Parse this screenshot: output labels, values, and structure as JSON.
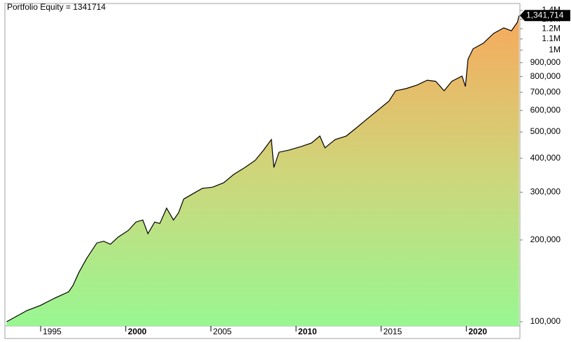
{
  "chart_data": {
    "type": "line",
    "title": "Portfolio Equity = 1341714",
    "log_scale": true,
    "xlim": [
      1992.9,
      2023.15
    ],
    "xticks": [
      1995,
      2000,
      2005,
      2010,
      2015,
      2020
    ],
    "ylim": [
      96500,
      1486000
    ],
    "yticks": [
      {
        "value": 100000,
        "label": "100,000"
      },
      {
        "value": 200000,
        "label": "200,000"
      },
      {
        "value": 300000,
        "label": "300,000"
      },
      {
        "value": 400000,
        "label": "400,000"
      },
      {
        "value": 500000,
        "label": "500,000"
      },
      {
        "value": 600000,
        "label": "600,000"
      },
      {
        "value": 700000,
        "label": "700,000"
      },
      {
        "value": 800000,
        "label": "800,000"
      },
      {
        "value": 900000,
        "label": "900,000"
      },
      {
        "value": 1000000,
        "label": "1M"
      },
      {
        "value": 1100000,
        "label": "1.1M"
      },
      {
        "value": 1200000,
        "label": "1.2M"
      },
      {
        "value": 1300000,
        "label": "1.3M"
      },
      {
        "value": 1400000,
        "label": "1.4M"
      }
    ],
    "series": [
      {
        "color": "#000000",
        "x": [
          1993.0,
          1994.2,
          1995.0,
          1995.8,
          1996.65,
          1996.9,
          1997.25,
          1997.7,
          1998.3,
          1998.7,
          1999.1,
          1999.55,
          2000.15,
          2000.6,
          2001.0,
          2001.3,
          2001.7,
          2002.0,
          2002.4,
          2002.8,
          2003.1,
          2003.4,
          2003.9,
          2004.5,
          2005.1,
          2005.75,
          2006.35,
          2007.0,
          2007.6,
          2008.1,
          2008.55,
          2008.7,
          2009.0,
          2009.6,
          2010.3,
          2010.9,
          2011.4,
          2011.7,
          2012.3,
          2012.95,
          2013.55,
          2014.2,
          2014.8,
          2015.45,
          2015.85,
          2016.45,
          2017.1,
          2017.7,
          2018.2,
          2018.7,
          2019.15,
          2019.75,
          2019.95,
          2020.1,
          2020.4,
          2021.0,
          2021.6,
          2022.2,
          2022.65,
          2023.0,
          2023.1
        ],
        "values": [
          100000,
          110000,
          115000,
          122000,
          129000,
          136000,
          152000,
          171000,
          195000,
          198000,
          193000,
          205000,
          217000,
          233000,
          237000,
          211000,
          233000,
          230000,
          262000,
          237000,
          252000,
          283000,
          295000,
          310000,
          313000,
          325000,
          349000,
          370000,
          393000,
          429000,
          469000,
          370000,
          421000,
          429000,
          442000,
          455000,
          483000,
          437000,
          469000,
          483000,
          518000,
          560000,
          601000,
          649000,
          709000,
          722000,
          744000,
          775000,
          768000,
          709000,
          768000,
          803000,
          735000,
          926000,
          1012000,
          1061000,
          1152000,
          1209000,
          1179000,
          1267000,
          1341714
        ],
        "value_labels": [
          null,
          null,
          null,
          null,
          null,
          null,
          null,
          null,
          null,
          null,
          null,
          null,
          null,
          null,
          null,
          null,
          null,
          null,
          null,
          null,
          null,
          null,
          null,
          null,
          null,
          null,
          null,
          null,
          null,
          null,
          null,
          null,
          null,
          null,
          null,
          null,
          null,
          null,
          null,
          null,
          null,
          null,
          null,
          null,
          null,
          null,
          null,
          null,
          null,
          null,
          null,
          null,
          null,
          null,
          null,
          null,
          null,
          null,
          null,
          null,
          "1,341,714"
        ]
      }
    ]
  }
}
